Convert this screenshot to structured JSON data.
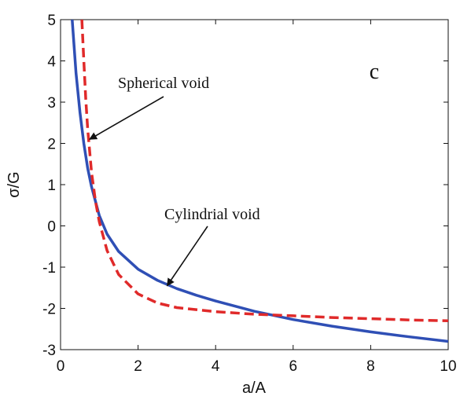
{
  "chart_data": {
    "type": "line",
    "xlabel": "a/A",
    "ylabel": "σ/G",
    "xlim": [
      0,
      10
    ],
    "ylim": [
      -3,
      5
    ],
    "xticks": [
      "0",
      "2",
      "4",
      "6",
      "8",
      "10"
    ],
    "yticks": [
      "-3",
      "-2",
      "-1",
      "0",
      "1",
      "2",
      "3",
      "4",
      "5"
    ],
    "grid": false,
    "panel_label": "c",
    "series": [
      {
        "name": "Cylindrial void",
        "color": "#2f4fb5",
        "style": "solid",
        "x": [
          0.3,
          0.4,
          0.5,
          0.6,
          0.7,
          0.8,
          1.0,
          1.2,
          1.5,
          2.0,
          2.5,
          3.0,
          3.5,
          4.0,
          5.0,
          6.0,
          7.0,
          8.0,
          9.0,
          10.0
        ],
        "y": [
          5.0,
          3.7,
          2.75,
          2.0,
          1.4,
          0.95,
          0.25,
          -0.2,
          -0.62,
          -1.05,
          -1.32,
          -1.52,
          -1.68,
          -1.82,
          -2.07,
          -2.27,
          -2.43,
          -2.57,
          -2.69,
          -2.8
        ]
      },
      {
        "name": "Spherical void",
        "color": "#e02a2a",
        "style": "dashed",
        "x": [
          0.55,
          0.6,
          0.65,
          0.7,
          0.8,
          0.9,
          1.0,
          1.2,
          1.5,
          2.0,
          2.5,
          3.0,
          4.0,
          5.0,
          6.0,
          7.0,
          8.0,
          9.0,
          10.0
        ],
        "y": [
          5.0,
          4.0,
          3.1,
          2.35,
          1.3,
          0.6,
          0.1,
          -0.6,
          -1.18,
          -1.65,
          -1.87,
          -1.98,
          -2.08,
          -2.14,
          -2.18,
          -2.22,
          -2.25,
          -2.28,
          -2.3
        ]
      }
    ],
    "annotations": [
      {
        "text": "Spherical void",
        "target_x": 0.75,
        "target_y": 2.1
      },
      {
        "text": "Cylindrial void",
        "target_x": 2.75,
        "target_y": -1.45
      }
    ]
  }
}
